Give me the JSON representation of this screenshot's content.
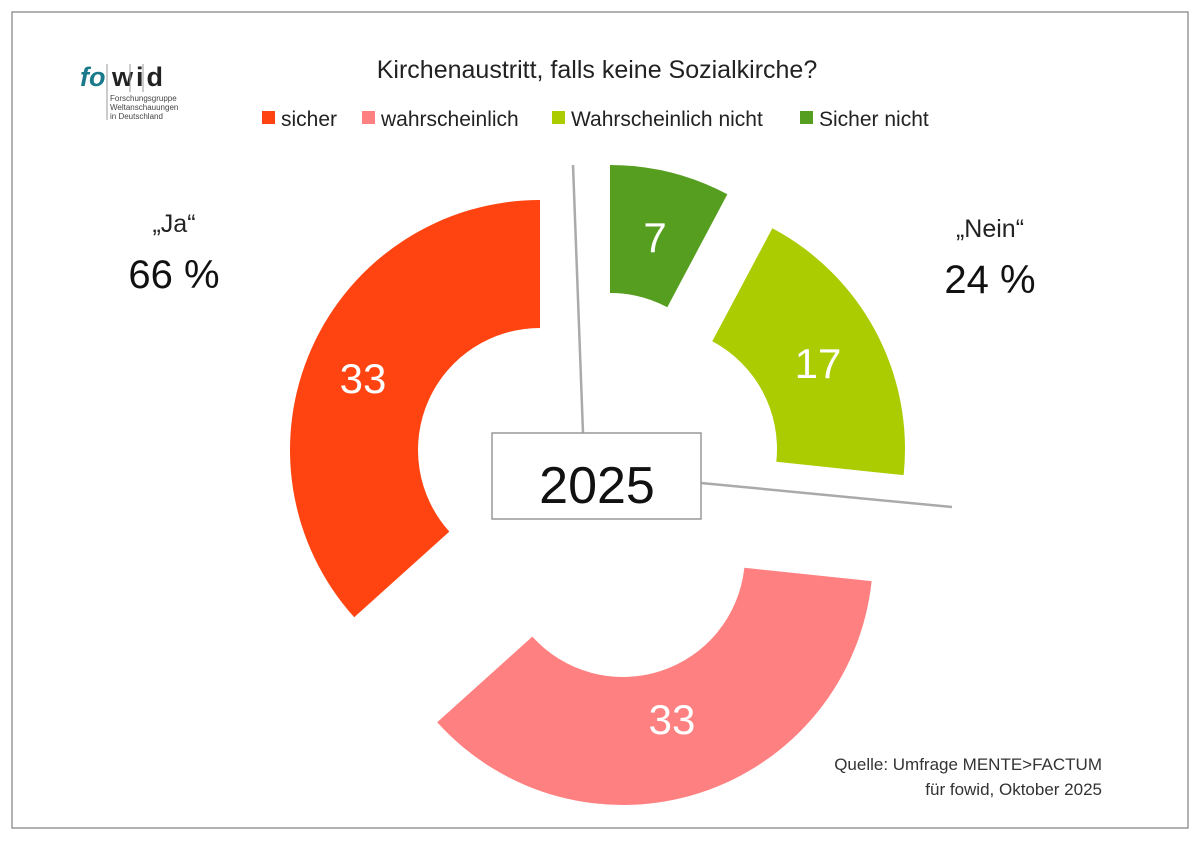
{
  "logo": {
    "brand_a": "fo",
    "brand_b": "wid",
    "line1": "Forschungsgruppe",
    "line2": "Weltanschauungen",
    "line3": "in Deutschland"
  },
  "chart_data": {
    "type": "pie",
    "variant": "exploded-donut",
    "title": "Kirchenaustritt, falls keine Sozialkirche?",
    "center_label": "2025",
    "legend_position": "top",
    "series": [
      {
        "name": "Sicher nicht",
        "value": 7,
        "color": "#559e1f",
        "label_color": "#ffffff"
      },
      {
        "name": "Wahrscheinlich nicht",
        "value": 17,
        "color": "#aacc00",
        "label_color": "#ffffff"
      },
      {
        "name": "wahrscheinlich",
        "value": 33,
        "color": "#ff8080",
        "label_color": "#ffffff"
      },
      {
        "name": "sicher",
        "value": 33,
        "color": "#ff4411",
        "label_color": "#ffffff"
      }
    ],
    "legend_order": [
      "sicher",
      "wahrscheinlich",
      "Wahrscheinlich nicht",
      "Sicher nicht"
    ],
    "groups": [
      {
        "label": "„Ja“",
        "value_text": "66 %"
      },
      {
        "label": "„Nein“",
        "value_text": "24 %"
      }
    ],
    "source_line1": "Quelle: Umfrage MENTE>FACTUM",
    "source_line2": "für fowid, Oktober 2025"
  }
}
